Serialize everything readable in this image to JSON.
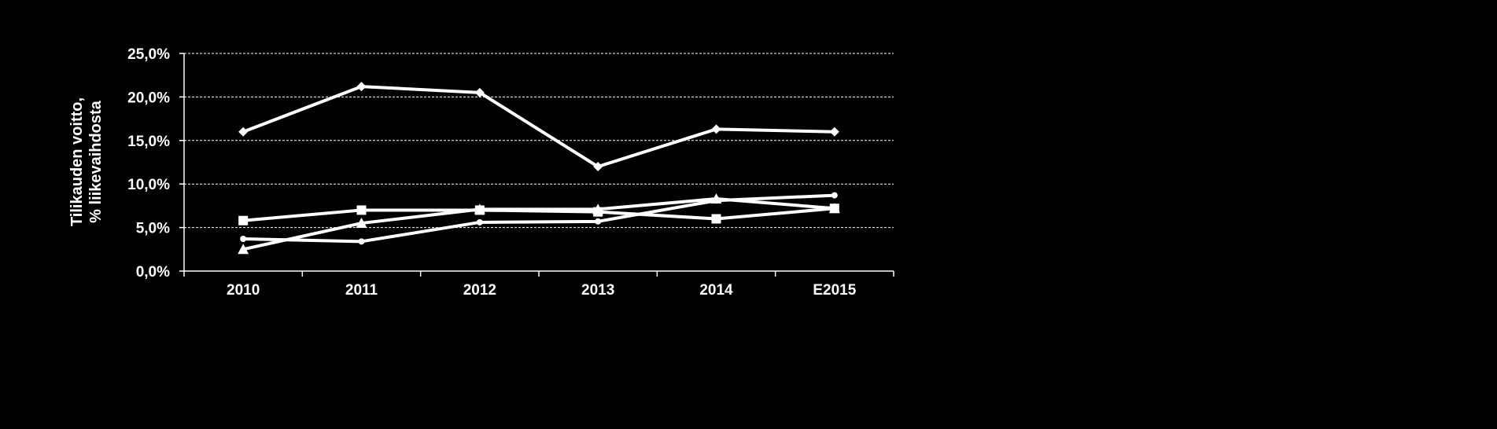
{
  "chart_data": {
    "type": "line",
    "categories": [
      "2010",
      "2011",
      "2012",
      "2013",
      "2014",
      "E2015"
    ],
    "ylabel_lines": [
      "Tilikauden voitto,",
      "% liikevaihdosta"
    ],
    "ylim": [
      0,
      25
    ],
    "yticks": [
      0,
      5,
      10,
      15,
      20,
      25
    ],
    "ytick_labels": [
      "0,0%",
      "5,0%",
      "10,0%",
      "15,0%",
      "20,0%",
      "25,0%"
    ],
    "grid": true,
    "series": [
      {
        "marker": "diamond",
        "values": [
          16.0,
          21.2,
          20.5,
          12.0,
          16.3,
          16.0
        ]
      },
      {
        "marker": "square",
        "values": [
          5.8,
          7.0,
          7.0,
          6.8,
          6.0,
          7.2
        ]
      },
      {
        "marker": "triangle",
        "values": [
          2.5,
          5.5,
          7.1,
          7.1,
          8.3,
          7.2
        ]
      },
      {
        "marker": "circle",
        "values": [
          3.7,
          3.4,
          5.6,
          5.7,
          8.1,
          8.7
        ]
      }
    ],
    "colors": {
      "background": "#000000",
      "line": "#ffffff",
      "grid": "#ffffff"
    }
  }
}
